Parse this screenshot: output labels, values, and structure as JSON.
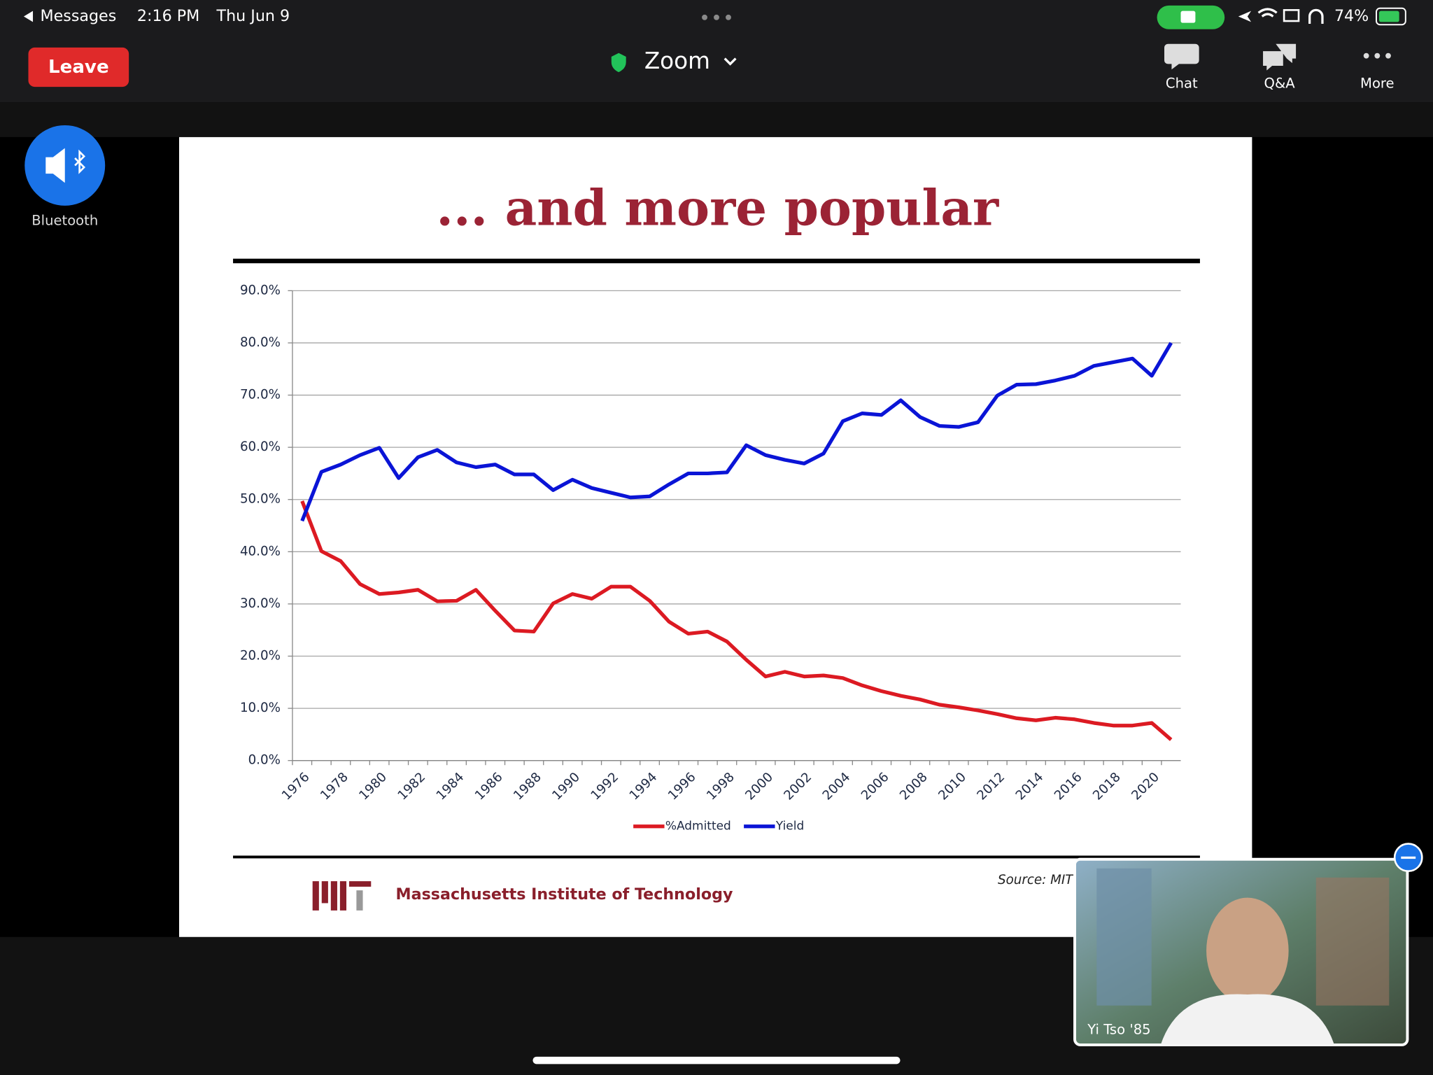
{
  "status_bar": {
    "back": "Messages",
    "time": "2:16 PM",
    "date": "Thu Jun 9",
    "battery": "74%"
  },
  "toolbar": {
    "leave": "Leave",
    "app": "Zoom",
    "buttons": [
      "Chat",
      "Q&A",
      "More"
    ]
  },
  "audio": {
    "label": "Bluetooth"
  },
  "chart_data": {
    "type": "line",
    "title": "... and more popular",
    "categories": [
      "1976",
      null,
      "1978",
      null,
      "1980",
      null,
      "1982",
      null,
      "1984",
      null,
      "1986",
      null,
      "1988",
      null,
      "1990",
      null,
      "1992",
      null,
      "1994",
      null,
      "1996",
      null,
      "1998",
      null,
      "2000",
      null,
      "2002",
      null,
      "2004",
      null,
      "2006",
      null,
      "2008",
      null,
      "2010",
      null,
      "2012",
      null,
      "2014",
      null,
      "2016",
      null,
      "2018",
      null,
      "2020",
      null
    ],
    "series": [
      {
        "name": "%Admitted",
        "color": "#dc1a22",
        "values": [
          49.7,
          40.1,
          38.2,
          33.8,
          31.9,
          32.2,
          32.7,
          30.5,
          30.6,
          32.7,
          28.7,
          24.9,
          24.7,
          30.1,
          31.9,
          31.0,
          33.3,
          33.3,
          30.6,
          26.6,
          24.3,
          24.7,
          22.8,
          19.3,
          16.1,
          17.0,
          16.1,
          16.3,
          15.8,
          14.4,
          13.3,
          12.4,
          11.7,
          10.7,
          10.2,
          9.6,
          8.9,
          8.1,
          7.7,
          8.2,
          7.9,
          7.2,
          6.7,
          6.7,
          7.2,
          4.0
        ]
      },
      {
        "name": "Yield",
        "color": "#0a14d6",
        "values": [
          45.9,
          55.3,
          56.7,
          58.5,
          59.9,
          54.1,
          58.1,
          59.5,
          57.1,
          56.2,
          56.7,
          54.8,
          54.8,
          51.8,
          53.8,
          52.2,
          51.3,
          50.4,
          50.6,
          52.9,
          55.0,
          55.0,
          55.2,
          60.4,
          58.5,
          57.6,
          56.9,
          58.8,
          65.0,
          66.5,
          66.2,
          69.0,
          65.8,
          64.1,
          63.9,
          64.8,
          69.9,
          72.0,
          72.1,
          72.8,
          73.7,
          75.6,
          76.3,
          77.0,
          73.7,
          80.0
        ]
      }
    ],
    "ylim": [
      0,
      90
    ],
    "yticks": [
      {
        "value": 0,
        "label": "0.0%"
      },
      {
        "value": 10,
        "label": "10.0%"
      },
      {
        "value": 20,
        "label": "20.0%"
      },
      {
        "value": 30,
        "label": "30.0%"
      },
      {
        "value": 40,
        "label": "40.0%"
      },
      {
        "value": 50,
        "label": "50.0%"
      },
      {
        "value": 60,
        "label": "60.0%"
      },
      {
        "value": 70,
        "label": "70.0%"
      },
      {
        "value": 80,
        "label": "80.0%"
      },
      {
        "value": 90,
        "label": "90.0%"
      }
    ],
    "grid": true,
    "legend": "bottom"
  },
  "slide": {
    "footer": {
      "org": "Massachusetts Institute of Technology",
      "source": "Source: MIT"
    }
  },
  "video": {
    "name": "Yi Tso '85"
  }
}
